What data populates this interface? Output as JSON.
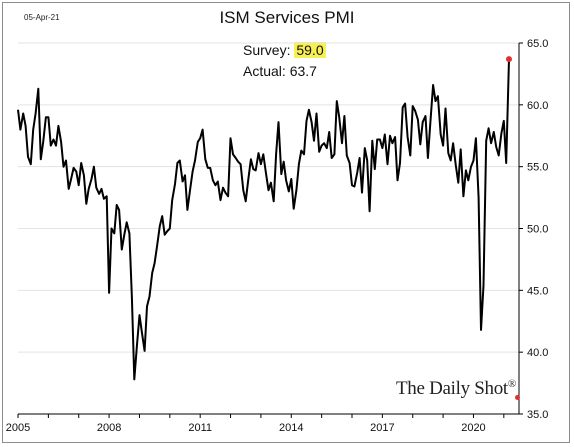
{
  "header": {
    "date": "05-Apr-21",
    "title": "ISM Services PMI"
  },
  "annotation": {
    "survey_label": "Survey:",
    "survey_value": "59.0",
    "actual_label": "Actual:",
    "actual_value": "63.7",
    "highlight_color": "#f7f055"
  },
  "brand": {
    "text": "The Daily Shot",
    "mark": "®"
  },
  "chart_data": {
    "type": "line",
    "title": "ISM Services PMI",
    "xlabel": "",
    "ylabel": "",
    "y_axis_side": "right",
    "xlim": [
      2005.0,
      2021.5
    ],
    "ylim": [
      35,
      65
    ],
    "y_ticks": [
      35.0,
      40.0,
      45.0,
      50.0,
      55.0,
      60.0,
      65.0
    ],
    "y_tick_labels": [
      "35.0",
      "40.0",
      "45.0",
      "50.0",
      "55.0",
      "60.0",
      "65.0"
    ],
    "x_ticks": [
      2005,
      2008,
      2011,
      2014,
      2017,
      2020
    ],
    "x_tick_labels": [
      "2005",
      "2008",
      "2011",
      "2014",
      "2017",
      "2020"
    ],
    "grid": "horizontal",
    "line_color": "#000000",
    "marker_color": "#e03030",
    "series": [
      {
        "values": [
          [
            2005.0,
            59.6
          ],
          [
            2005.08,
            58.0
          ],
          [
            2005.17,
            59.3
          ],
          [
            2005.25,
            58.3
          ],
          [
            2005.33,
            55.8
          ],
          [
            2005.42,
            55.2
          ],
          [
            2005.5,
            58.0
          ],
          [
            2005.58,
            59.3
          ],
          [
            2005.67,
            61.3
          ],
          [
            2005.75,
            55.6
          ],
          [
            2005.83,
            57.0
          ],
          [
            2005.92,
            59.0
          ],
          [
            2006.0,
            59.0
          ],
          [
            2006.08,
            56.7
          ],
          [
            2006.17,
            57.2
          ],
          [
            2006.25,
            56.7
          ],
          [
            2006.33,
            58.3
          ],
          [
            2006.42,
            57.0
          ],
          [
            2006.5,
            55.0
          ],
          [
            2006.58,
            55.5
          ],
          [
            2006.67,
            53.2
          ],
          [
            2006.75,
            54.0
          ],
          [
            2006.83,
            54.9
          ],
          [
            2006.92,
            54.6
          ],
          [
            2007.0,
            53.5
          ],
          [
            2007.08,
            55.3
          ],
          [
            2007.17,
            54.3
          ],
          [
            2007.25,
            52.0
          ],
          [
            2007.33,
            53.2
          ],
          [
            2007.42,
            54.0
          ],
          [
            2007.5,
            55.0
          ],
          [
            2007.58,
            53.3
          ],
          [
            2007.67,
            52.8
          ],
          [
            2007.75,
            53.2
          ],
          [
            2007.83,
            52.4
          ],
          [
            2007.92,
            52.6
          ],
          [
            2008.0,
            44.8
          ],
          [
            2008.08,
            50.0
          ],
          [
            2008.17,
            49.6
          ],
          [
            2008.25,
            51.9
          ],
          [
            2008.33,
            51.5
          ],
          [
            2008.42,
            48.3
          ],
          [
            2008.5,
            49.5
          ],
          [
            2008.58,
            50.5
          ],
          [
            2008.67,
            49.6
          ],
          [
            2008.75,
            44.4
          ],
          [
            2008.83,
            37.8
          ],
          [
            2008.92,
            40.6
          ],
          [
            2009.0,
            43.0
          ],
          [
            2009.08,
            41.6
          ],
          [
            2009.17,
            40.1
          ],
          [
            2009.25,
            43.7
          ],
          [
            2009.33,
            44.5
          ],
          [
            2009.42,
            46.4
          ],
          [
            2009.5,
            47.2
          ],
          [
            2009.58,
            48.6
          ],
          [
            2009.67,
            50.2
          ],
          [
            2009.75,
            51.0
          ],
          [
            2009.83,
            49.5
          ],
          [
            2009.92,
            49.8
          ],
          [
            2010.0,
            50.0
          ],
          [
            2010.08,
            52.3
          ],
          [
            2010.17,
            53.6
          ],
          [
            2010.25,
            55.3
          ],
          [
            2010.33,
            55.5
          ],
          [
            2010.42,
            53.8
          ],
          [
            2010.5,
            54.3
          ],
          [
            2010.58,
            51.5
          ],
          [
            2010.67,
            53.2
          ],
          [
            2010.75,
            54.6
          ],
          [
            2010.83,
            55.5
          ],
          [
            2010.92,
            57.0
          ],
          [
            2011.0,
            57.3
          ],
          [
            2011.08,
            58.0
          ],
          [
            2011.17,
            55.6
          ],
          [
            2011.25,
            54.9
          ],
          [
            2011.33,
            54.9
          ],
          [
            2011.42,
            53.9
          ],
          [
            2011.5,
            53.5
          ],
          [
            2011.58,
            53.8
          ],
          [
            2011.67,
            52.3
          ],
          [
            2011.75,
            53.3
          ],
          [
            2011.83,
            52.9
          ],
          [
            2011.92,
            52.6
          ],
          [
            2012.0,
            57.3
          ],
          [
            2012.08,
            56.0
          ],
          [
            2012.17,
            55.7
          ],
          [
            2012.25,
            55.4
          ],
          [
            2012.33,
            55.2
          ],
          [
            2012.42,
            53.1
          ],
          [
            2012.5,
            52.2
          ],
          [
            2012.58,
            53.9
          ],
          [
            2012.67,
            55.6
          ],
          [
            2012.75,
            54.8
          ],
          [
            2012.83,
            54.7
          ],
          [
            2012.92,
            56.1
          ],
          [
            2013.0,
            55.2
          ],
          [
            2013.08,
            56.0
          ],
          [
            2013.17,
            54.4
          ],
          [
            2013.25,
            53.1
          ],
          [
            2013.33,
            53.7
          ],
          [
            2013.42,
            52.2
          ],
          [
            2013.5,
            56.0
          ],
          [
            2013.58,
            58.6
          ],
          [
            2013.67,
            54.4
          ],
          [
            2013.75,
            55.4
          ],
          [
            2013.83,
            53.9
          ],
          [
            2013.92,
            53.0
          ],
          [
            2014.0,
            54.0
          ],
          [
            2014.08,
            51.6
          ],
          [
            2014.17,
            53.1
          ],
          [
            2014.25,
            55.2
          ],
          [
            2014.33,
            56.3
          ],
          [
            2014.42,
            56.0
          ],
          [
            2014.5,
            58.7
          ],
          [
            2014.58,
            59.6
          ],
          [
            2014.67,
            58.6
          ],
          [
            2014.75,
            57.1
          ],
          [
            2014.83,
            59.3
          ],
          [
            2014.92,
            56.2
          ],
          [
            2015.0,
            56.7
          ],
          [
            2015.08,
            56.9
          ],
          [
            2015.17,
            56.5
          ],
          [
            2015.25,
            57.8
          ],
          [
            2015.33,
            55.7
          ],
          [
            2015.42,
            56.0
          ],
          [
            2015.5,
            60.3
          ],
          [
            2015.58,
            59.0
          ],
          [
            2015.67,
            56.9
          ],
          [
            2015.75,
            59.1
          ],
          [
            2015.83,
            55.9
          ],
          [
            2015.92,
            55.3
          ],
          [
            2016.0,
            53.5
          ],
          [
            2016.08,
            53.4
          ],
          [
            2016.17,
            54.5
          ],
          [
            2016.25,
            55.7
          ],
          [
            2016.33,
            52.9
          ],
          [
            2016.42,
            56.5
          ],
          [
            2016.5,
            55.5
          ],
          [
            2016.58,
            51.4
          ],
          [
            2016.67,
            57.1
          ],
          [
            2016.75,
            54.8
          ],
          [
            2016.83,
            57.2
          ],
          [
            2016.92,
            57.2
          ],
          [
            2017.0,
            56.5
          ],
          [
            2017.08,
            57.6
          ],
          [
            2017.17,
            55.2
          ],
          [
            2017.25,
            57.5
          ],
          [
            2017.33,
            56.9
          ],
          [
            2017.42,
            57.4
          ],
          [
            2017.5,
            53.9
          ],
          [
            2017.58,
            55.3
          ],
          [
            2017.67,
            59.8
          ],
          [
            2017.75,
            60.1
          ],
          [
            2017.83,
            57.4
          ],
          [
            2017.92,
            55.9
          ],
          [
            2018.0,
            59.9
          ],
          [
            2018.08,
            59.5
          ],
          [
            2018.17,
            58.8
          ],
          [
            2018.25,
            56.8
          ],
          [
            2018.33,
            58.6
          ],
          [
            2018.42,
            59.1
          ],
          [
            2018.5,
            55.7
          ],
          [
            2018.58,
            58.5
          ],
          [
            2018.67,
            61.6
          ],
          [
            2018.75,
            60.3
          ],
          [
            2018.83,
            60.7
          ],
          [
            2018.92,
            57.6
          ],
          [
            2019.0,
            56.7
          ],
          [
            2019.08,
            59.7
          ],
          [
            2019.17,
            56.1
          ],
          [
            2019.25,
            55.5
          ],
          [
            2019.33,
            56.9
          ],
          [
            2019.42,
            55.1
          ],
          [
            2019.5,
            53.7
          ],
          [
            2019.58,
            56.4
          ],
          [
            2019.67,
            52.6
          ],
          [
            2019.75,
            54.7
          ],
          [
            2019.83,
            53.9
          ],
          [
            2019.92,
            55.0
          ],
          [
            2020.0,
            55.5
          ],
          [
            2020.08,
            57.3
          ],
          [
            2020.17,
            52.5
          ],
          [
            2020.25,
            41.8
          ],
          [
            2020.33,
            45.4
          ],
          [
            2020.42,
            57.1
          ],
          [
            2020.5,
            58.1
          ],
          [
            2020.58,
            56.9
          ],
          [
            2020.67,
            57.8
          ],
          [
            2020.75,
            56.6
          ],
          [
            2020.83,
            55.9
          ],
          [
            2020.92,
            57.7
          ],
          [
            2021.0,
            58.7
          ],
          [
            2021.08,
            55.3
          ],
          [
            2021.17,
            63.7
          ]
        ]
      }
    ],
    "last_point": [
      2021.17,
      63.7
    ]
  }
}
